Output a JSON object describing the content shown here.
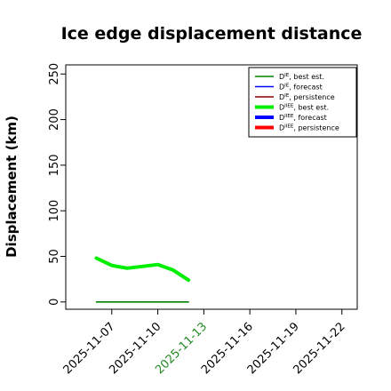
{
  "chart_data": {
    "type": "line",
    "title": "Ice edge displacement distance",
    "ylabel": "Displacement (km)",
    "xlabel": "",
    "xlim": [
      "2025-11-04",
      "2025-11-23"
    ],
    "ylim": [
      -8,
      260
    ],
    "x_ticks": [
      "2025-11-07",
      "2025-11-10",
      "2025-11-13",
      "2025-11-16",
      "2025-11-19",
      "2025-11-22"
    ],
    "highlight_tick": "2025-11-13",
    "highlight_color": "#228B22",
    "y_ticks": [
      0,
      50,
      100,
      150,
      200,
      250
    ],
    "grid": false,
    "legend_position": "top-right",
    "series": [
      {
        "name": "D^IE, best est.",
        "label_main": "D",
        "label_sup": "IE",
        "label_rest": ", best est.",
        "color": "#008000",
        "width": 1.6,
        "x": [
          "2025-11-06",
          "2025-11-07",
          "2025-11-08",
          "2025-11-09",
          "2025-11-10",
          "2025-11-11",
          "2025-11-12"
        ],
        "y": [
          0,
          0,
          0,
          0,
          0,
          0,
          0
        ]
      },
      {
        "name": "D^IE, forecast",
        "label_main": "D",
        "label_sup": "IE",
        "label_rest": ", forecast",
        "color": "#0000ff",
        "width": 1.6,
        "x": [],
        "y": []
      },
      {
        "name": "D^IE, persistence",
        "label_main": "D",
        "label_sup": "IE",
        "label_rest": ", persistence",
        "color": "#8b0000",
        "width": 1.6,
        "x": [],
        "y": []
      },
      {
        "name": "D^IIEE, best est.",
        "label_main": "D",
        "label_sup": "IIEE",
        "label_rest": ", best est.",
        "color": "#00ee00",
        "width": 4,
        "x": [
          "2025-11-06",
          "2025-11-07",
          "2025-11-08",
          "2025-11-09",
          "2025-11-10",
          "2025-11-11",
          "2025-11-12"
        ],
        "y": [
          48,
          40,
          37,
          39,
          41,
          35,
          24
        ]
      },
      {
        "name": "D^IIEE, forecast",
        "label_main": "D",
        "label_sup": "IIEE",
        "label_rest": ", forecast",
        "color": "#0000ff",
        "width": 4,
        "x": [],
        "y": []
      },
      {
        "name": "D^IIEE, persistence",
        "label_main": "D",
        "label_sup": "IIEE",
        "label_rest": ", persistence",
        "color": "#ff0000",
        "width": 4,
        "x": [],
        "y": []
      }
    ]
  }
}
